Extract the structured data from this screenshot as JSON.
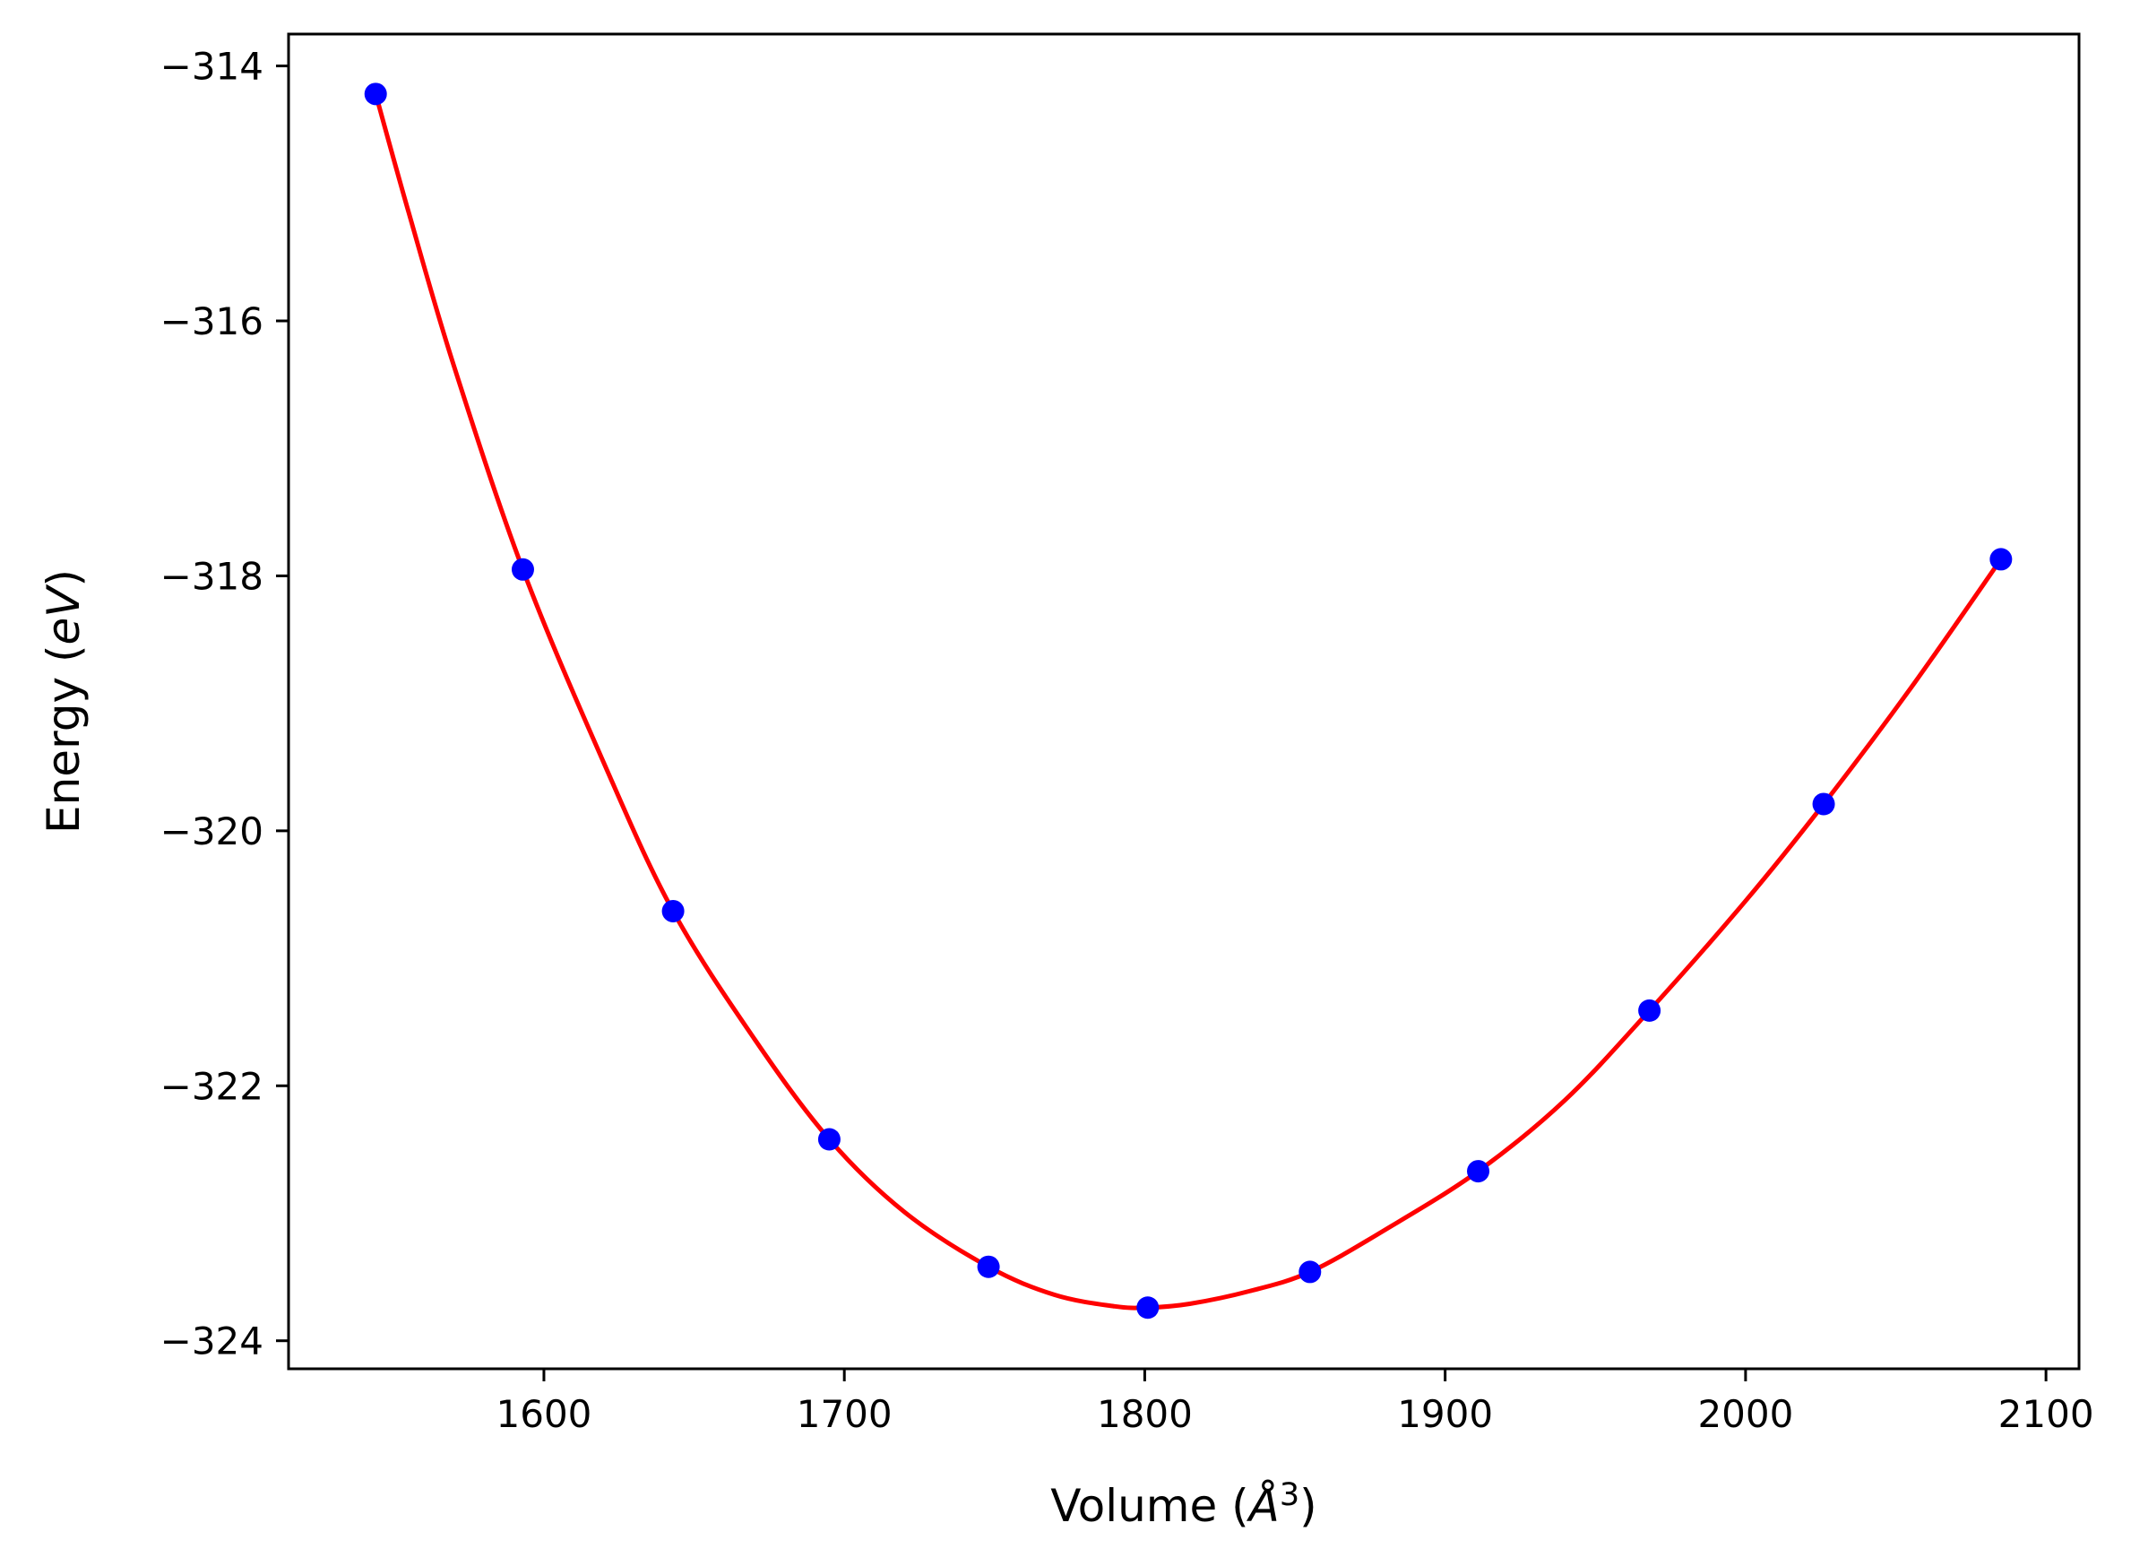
{
  "chart_data": {
    "type": "scatter",
    "title": "",
    "xlabel": {
      "prefix": "Volume (",
      "symbol": "Å",
      "exponent": "3",
      "suffix": ")"
    },
    "ylabel": {
      "prefix": "Energy (",
      "symbol": "eV",
      "suffix": ")"
    },
    "xlim": [
      1515,
      2111
    ],
    "ylim": [
      -324.22,
      -313.75
    ],
    "xticks": [
      1600,
      1700,
      1800,
      1900,
      2000,
      2100
    ],
    "xtick_labels": [
      "1600",
      "1700",
      "1800",
      "1900",
      "2000",
      "2100"
    ],
    "yticks": [
      -324,
      -322,
      -320,
      -318,
      -316,
      -314
    ],
    "ytick_labels": [
      "−324",
      "−322",
      "−320",
      "−318",
      "−316",
      "−314"
    ],
    "grid": false,
    "legend": "none",
    "series": [
      {
        "kind": "points",
        "color": "#0000ff",
        "x": [
          1544,
          1593,
          1643,
          1695,
          1748,
          1801,
          1855,
          1911,
          1968,
          2026,
          2085
        ],
        "y": [
          -314.22,
          -317.95,
          -320.63,
          -322.42,
          -323.42,
          -323.74,
          -323.46,
          -322.67,
          -321.41,
          -319.79,
          -317.87
        ]
      },
      {
        "kind": "fit-curve",
        "color": "#ff0000",
        "x": [
          1544,
          1555,
          1570,
          1593,
          1620,
          1643,
          1670,
          1695,
          1720,
          1748,
          1770,
          1790,
          1801,
          1815,
          1835,
          1855,
          1880,
          1911,
          1940,
          1968,
          2000,
          2026,
          2055,
          2085
        ],
        "y": [
          -314.22,
          -315.15,
          -316.35,
          -317.95,
          -319.47,
          -320.63,
          -321.63,
          -322.42,
          -322.99,
          -323.42,
          -323.64,
          -323.73,
          -323.74,
          -323.71,
          -323.61,
          -323.46,
          -323.13,
          -322.67,
          -322.11,
          -321.41,
          -320.55,
          -319.79,
          -318.88,
          -317.87
        ]
      }
    ]
  }
}
